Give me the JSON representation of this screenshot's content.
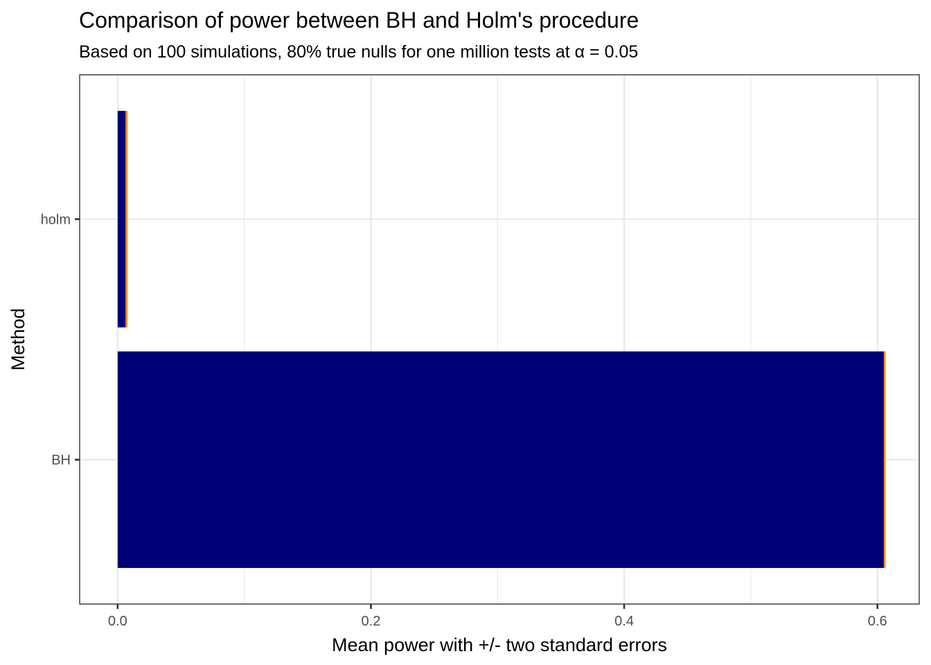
{
  "chart_data": {
    "type": "bar",
    "orientation": "horizontal",
    "title": "Comparison of power between BH and Holm's procedure",
    "subtitle": "Based on 100 simulations, 80% true nulls for one million tests at α = 0.05",
    "xlabel": "Mean power with +/- two standard errors",
    "ylabel": "Method",
    "categories": [
      "BH",
      "holm"
    ],
    "values": [
      0.6055,
      0.0065
    ],
    "error_lower": [
      0.605,
      0.0062
    ],
    "error_upper": [
      0.6065,
      0.0078
    ],
    "xlim": [
      -0.03,
      0.633
    ],
    "x_ticks": [
      0.0,
      0.2,
      0.4,
      0.6
    ],
    "x_tick_labels": [
      "0.0",
      "0.2",
      "0.4",
      "0.6"
    ],
    "x_minor_ticks": [
      0.1,
      0.3,
      0.5
    ],
    "grid": true,
    "colors": {
      "bar": "#000077",
      "error": "#ff8c00",
      "grid": "#ebebeb",
      "border": "#333333"
    }
  }
}
